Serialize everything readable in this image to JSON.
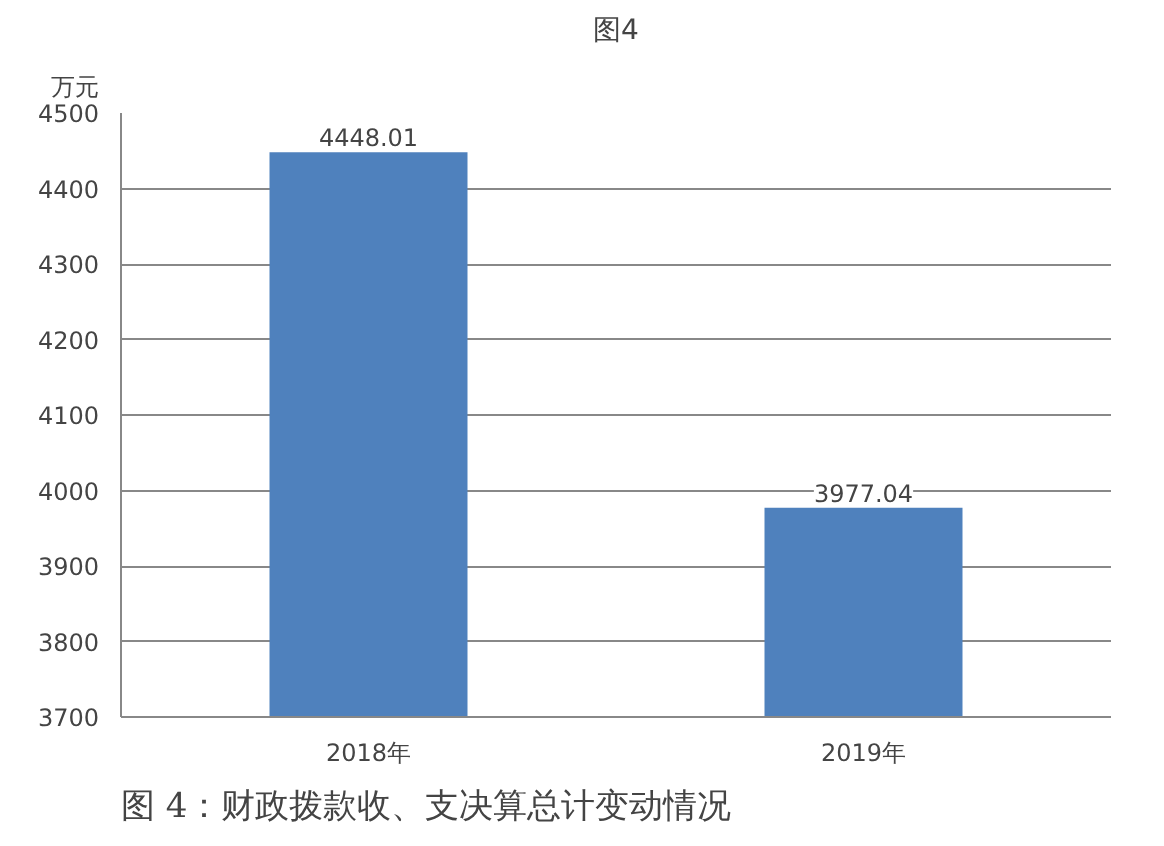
{
  "chart_data": {
    "type": "bar",
    "title": "图4",
    "ylabel": "万元",
    "categories": [
      "2018年",
      "2019年"
    ],
    "values": [
      4448.01,
      3977.04
    ],
    "color": "#4f81bd",
    "ylim": [
      3700,
      4500
    ],
    "yticks": [
      3700,
      3800,
      3900,
      4000,
      4100,
      4200,
      4300,
      4400,
      4500
    ],
    "grid": "y",
    "data_labels": true,
    "annotations": [
      "图 4：财政拨款收、支决算总计变动情况"
    ]
  }
}
